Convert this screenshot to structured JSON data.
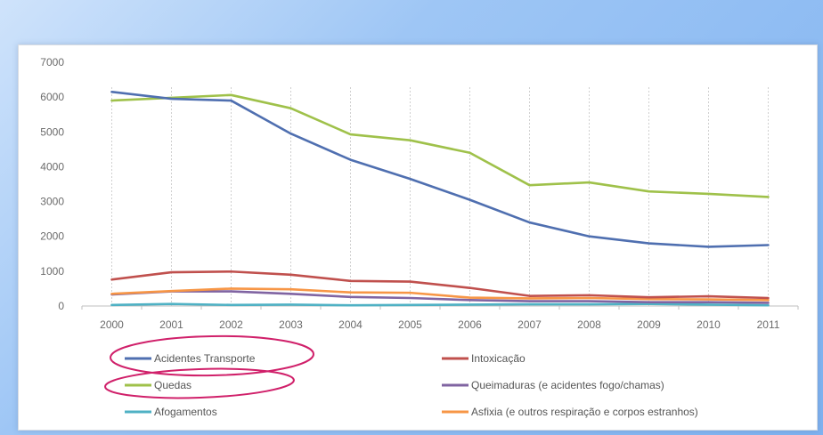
{
  "chart_data": {
    "type": "line",
    "title": "",
    "xlabel": "",
    "ylabel": "",
    "ylim": [
      0,
      7000
    ],
    "yticks": [
      0,
      1000,
      2000,
      3000,
      4000,
      5000,
      6000,
      7000
    ],
    "categories": [
      "2000",
      "2001",
      "2002",
      "2003",
      "2004",
      "2005",
      "2006",
      "2007",
      "2008",
      "2009",
      "2010",
      "2011"
    ],
    "grid": "vertical dotted lines at each year",
    "legend_position": "bottom",
    "series": [
      {
        "name": "Acidentes Transporte",
        "color": "#4f6fb0",
        "values": [
          6150,
          5950,
          5900,
          4950,
          4200,
          3650,
          3050,
          2400,
          2000,
          1800,
          1700,
          1750
        ]
      },
      {
        "name": "Quedas",
        "color": "#9fc14a",
        "values": [
          5900,
          5980,
          6060,
          5680,
          4930,
          4760,
          4400,
          3470,
          3550,
          3290,
          3220,
          3130
        ]
      },
      {
        "name": "Afogamentos",
        "color": "#4fb1c4",
        "values": [
          30,
          60,
          30,
          40,
          20,
          30,
          40,
          50,
          50,
          60,
          40,
          20
        ]
      },
      {
        "name": "Intoxicação",
        "color": "#c0504d",
        "values": [
          760,
          970,
          990,
          900,
          720,
          700,
          520,
          290,
          310,
          250,
          280,
          230
        ]
      },
      {
        "name": "Queimaduras (e acidentes  fogo/chamas)",
        "color": "#8064a2",
        "values": [
          330,
          420,
          420,
          350,
          260,
          230,
          170,
          140,
          140,
          110,
          110,
          90
        ]
      },
      {
        "name": "Asfixia (e outros respiração e corpos estranhos)",
        "color": "#f79646",
        "values": [
          350,
          430,
          500,
          480,
          390,
          380,
          240,
          220,
          230,
          200,
          190,
          170
        ]
      }
    ],
    "legend_order": [
      0,
      3,
      1,
      4,
      2,
      5
    ]
  },
  "colors": {
    "annotation_circle": "#d0206a"
  }
}
